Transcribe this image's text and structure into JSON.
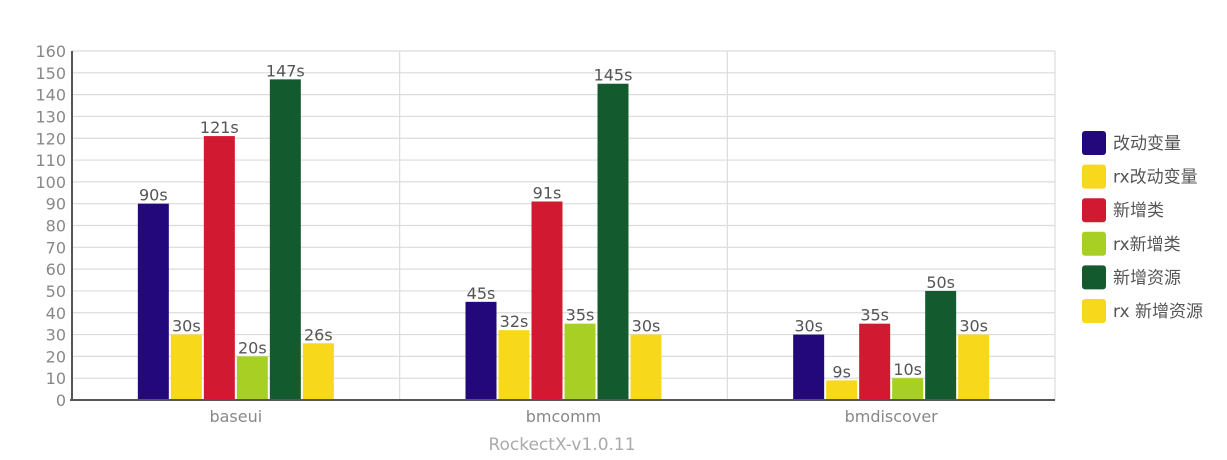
{
  "chart_data": {
    "type": "bar",
    "categories": [
      "baseui",
      "bmcomm",
      "bmdiscover"
    ],
    "xlabel": "RockectX-v1.0.11",
    "ylabel": "",
    "ylim": [
      0,
      160
    ],
    "yticks": [
      0,
      10,
      20,
      30,
      40,
      50,
      60,
      70,
      80,
      90,
      100,
      110,
      120,
      130,
      140,
      150,
      160
    ],
    "grid": true,
    "legend_position": "right",
    "value_suffix": "s",
    "series": [
      {
        "name": "改动变量",
        "color": "#22087a",
        "values": [
          90,
          45,
          30
        ]
      },
      {
        "name": "rx改动变量",
        "color": "#f8d81b",
        "values": [
          30,
          32,
          9
        ]
      },
      {
        "name": "新增类",
        "color": "#d11a31",
        "values": [
          121,
          91,
          35
        ]
      },
      {
        "name": "rx新增类",
        "color": "#a8cf24",
        "values": [
          20,
          35,
          10
        ]
      },
      {
        "name": "新增资源",
        "color": "#135b2e",
        "values": [
          147,
          145,
          50
        ]
      },
      {
        "name": "rx 新增资源",
        "color": "#f8d81b",
        "values": [
          26,
          30,
          30
        ]
      }
    ]
  }
}
